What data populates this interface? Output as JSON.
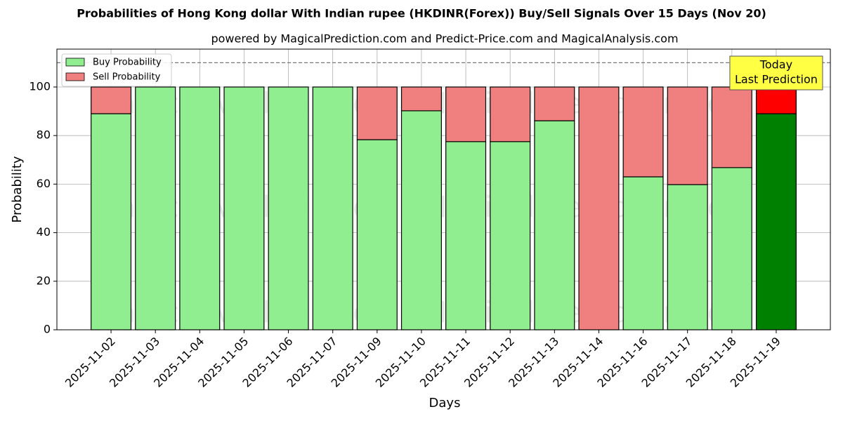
{
  "chart_data": {
    "type": "stacked_bar",
    "title": "Probabilities of Hong Kong dollar With Indian rupee (HKDINR(Forex)) Buy/Sell Signals Over 15 Days (Nov 20)",
    "subtitle": "powered by MagicalPrediction.com and Predict-Price.com and MagicalAnalysis.com",
    "x_label": "Days",
    "y_label": "Probability",
    "categories": [
      "2025-11-02",
      "2025-11-03",
      "2025-11-04",
      "2025-11-05",
      "2025-11-06",
      "2025-11-07",
      "2025-11-09",
      "2025-11-10",
      "2025-11-11",
      "2025-11-12",
      "2025-11-13",
      "2025-11-14",
      "2025-11-16",
      "2025-11-17",
      "2025-11-18",
      "2025-11-19"
    ],
    "series": [
      {
        "name": "Buy Probability",
        "color": "#90ee90",
        "colors": [
          "#90ee90",
          "#90ee90",
          "#90ee90",
          "#90ee90",
          "#90ee90",
          "#90ee90",
          "#90ee90",
          "#90ee90",
          "#90ee90",
          "#90ee90",
          "#90ee90",
          "#90ee90",
          "#90ee90",
          "#90ee90",
          "#90ee90",
          "#008000"
        ],
        "values": [
          89,
          100,
          100,
          100,
          100,
          100,
          78.3,
          90.2,
          77.5,
          77.5,
          86.1,
          0,
          63,
          59.8,
          66.8,
          89
        ]
      },
      {
        "name": "Sell Probability",
        "color": "#f08080",
        "colors": [
          "#f08080",
          "#f08080",
          "#f08080",
          "#f08080",
          "#f08080",
          "#f08080",
          "#f08080",
          "#f08080",
          "#f08080",
          "#f08080",
          "#f08080",
          "#f08080",
          "#f08080",
          "#f08080",
          "#f08080",
          "#ff0000"
        ],
        "values": [
          11,
          0,
          0,
          0,
          0,
          0,
          21.7,
          9.8,
          22.5,
          22.5,
          13.9,
          100,
          37,
          40.2,
          33.2,
          11
        ]
      }
    ],
    "ylim": [
      0,
      115.6
    ],
    "yticks": [
      0,
      20,
      40,
      60,
      80,
      100
    ],
    "grid": true,
    "reference_line": 110,
    "legend": "upper left",
    "annotation": [
      "Today",
      "Last Prediction"
    ],
    "watermarks": [
      "MagicalAnalysis.com",
      "MagicalPrediction.com"
    ]
  }
}
